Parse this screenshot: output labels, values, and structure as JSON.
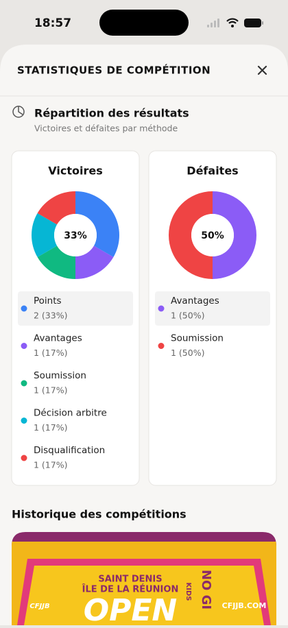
{
  "status_bar": {
    "time": "18:57"
  },
  "sheet": {
    "title": "STATISTIQUES DE COMPÉTITION"
  },
  "section": {
    "title": "Répartition des résultats",
    "subtitle": "Victoires et défaites par méthode"
  },
  "chart_data": [
    {
      "type": "pie",
      "title": "Victoires",
      "center_label": "33%",
      "categories": [
        "Points",
        "Avantages",
        "Soumission",
        "Décision arbitre",
        "Disqualification"
      ],
      "values": [
        2,
        1,
        1,
        1,
        1
      ],
      "value_labels": [
        "2 (33%)",
        "1 (17%)",
        "1 (17%)",
        "1 (17%)",
        "1 (17%)"
      ],
      "colors": [
        "#3b82f6",
        "#8b5cf6",
        "#10b981",
        "#06b6d4",
        "#ef4444"
      ]
    },
    {
      "type": "pie",
      "title": "Défaites",
      "center_label": "50%",
      "categories": [
        "Avantages",
        "Soumission"
      ],
      "values": [
        1,
        1
      ],
      "value_labels": [
        "1 (50%)",
        "1 (50%)"
      ],
      "colors": [
        "#8b5cf6",
        "#ef4444"
      ]
    }
  ],
  "history": {
    "title": "Historique des compétitions",
    "banner": {
      "city": "SAINT DENIS",
      "region": "ÎLE DE LA RÉUNION",
      "event": "OPEN",
      "kids": "KIDS",
      "nogi": "NO GI",
      "site": "CFJJB.COM",
      "brand": "CFJJB"
    }
  }
}
